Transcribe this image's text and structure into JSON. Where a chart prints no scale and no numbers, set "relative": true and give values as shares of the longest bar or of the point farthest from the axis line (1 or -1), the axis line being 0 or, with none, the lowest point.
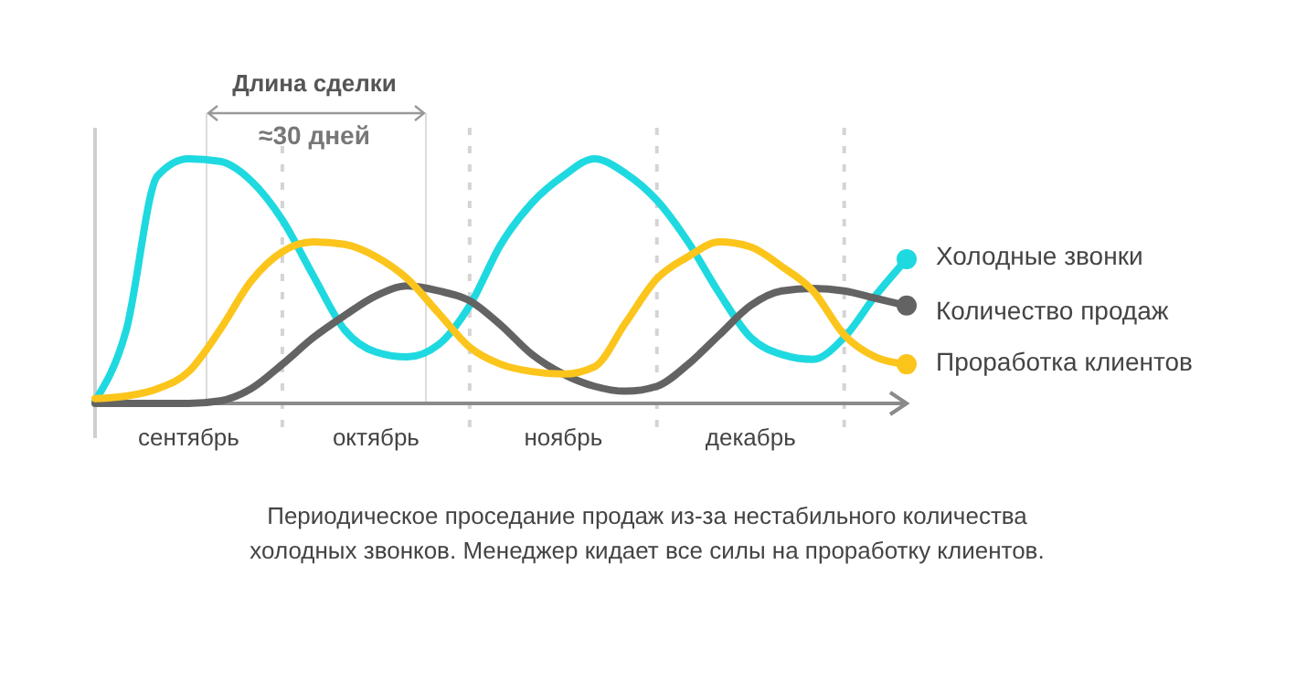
{
  "chart_data": {
    "type": "line",
    "relative": true,
    "categories": [
      null,
      null,
      null,
      "сентябрь",
      null,
      null,
      null,
      null,
      null,
      "октябрь",
      null,
      null,
      null,
      null,
      null,
      "ноябрь",
      null,
      null,
      null,
      null,
      null,
      "декабрь",
      null,
      null,
      null,
      null,
      null
    ],
    "legend": "right",
    "grid": "x",
    "series": [
      {
        "name": "Холодные звонки",
        "color": "#1fd9e0",
        "values": [
          0.01,
          0.3,
          0.93,
          1.0,
          0.99,
          0.91,
          0.75,
          0.52,
          0.3,
          0.21,
          0.19,
          0.24,
          0.4,
          0.65,
          0.82,
          0.93,
          1.0,
          0.94,
          0.83,
          0.66,
          0.45,
          0.27,
          0.2,
          0.18,
          0.27,
          0.44,
          0.59
        ]
      },
      {
        "name": "Количество продаж",
        "color": "#636363",
        "values": [
          0,
          0,
          0,
          0,
          0.01,
          0.06,
          0.16,
          0.27,
          0.36,
          0.44,
          0.48,
          0.46,
          0.42,
          0.32,
          0.2,
          0.12,
          0.07,
          0.05,
          0.07,
          0.16,
          0.28,
          0.4,
          0.46,
          0.47,
          0.46,
          0.43,
          0.4
        ]
      },
      {
        "name": "Проработка клиентов",
        "color": "#fcc51c",
        "values": [
          0.02,
          0.03,
          0.06,
          0.13,
          0.3,
          0.5,
          0.62,
          0.66,
          0.65,
          0.6,
          0.51,
          0.37,
          0.23,
          0.16,
          0.13,
          0.12,
          0.15,
          0.33,
          0.51,
          0.6,
          0.66,
          0.64,
          0.56,
          0.46,
          0.28,
          0.19,
          0.16
        ]
      }
    ],
    "annotations": [
      "Длина сделки",
      "≈30 дней",
      "Периодическое проседание продаж из-за нестабильного количества холодных звонков. Менеджер кидает все силы на проработку клиентов."
    ]
  }
}
